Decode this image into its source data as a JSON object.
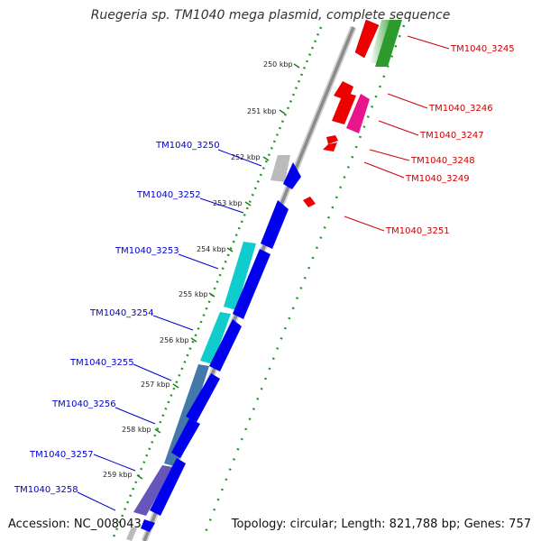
{
  "title": "Ruegeria sp. TM1040 mega plasmid, complete sequence",
  "footer": {
    "accession": "Accession: NC_008043",
    "summary": "Topology: circular; Length: 821,788 bp; Genes: 757"
  },
  "colors": {
    "backbone": "#8c8c8c",
    "tick_major": "#1e7a1e",
    "tick_minor": "#229922",
    "label_forward": "#0000cc",
    "label_reverse": "#cc0000"
  },
  "kbp_ticks": [
    "250 kbp",
    "251 kbp",
    "252 kbp",
    "253 kbp",
    "254 kbp",
    "255 kbp",
    "256 kbp",
    "257 kbp",
    "258 kbp",
    "259 kbp"
  ],
  "reverse_genes": [
    "TM1040_3245",
    "TM1040_3246",
    "TM1040_3247",
    "TM1040_3248",
    "TM1040_3249",
    "TM1040_3251"
  ],
  "forward_genes": [
    "TM1040_3250",
    "TM1040_3252",
    "TM1040_3253",
    "TM1040_3254",
    "TM1040_3255",
    "TM1040_3256",
    "TM1040_3257",
    "TM1040_3258"
  ]
}
